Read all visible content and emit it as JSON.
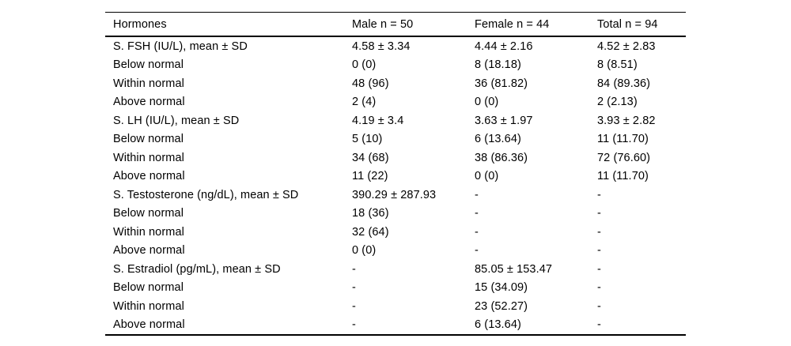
{
  "colors": {
    "background": "#ffffff",
    "text": "#000000",
    "rule": "#000000"
  },
  "table": {
    "columns": [
      "Hormones",
      "Male n = 50",
      "Female n = 44",
      "Total n = 94"
    ],
    "rows": [
      {
        "cells": [
          "S. FSH (IU/L), mean ± SD",
          "4.58 ± 3.34",
          "4.44 ± 2.16",
          "4.52 ± 2.83"
        ]
      },
      {
        "cells": [
          "Below normal",
          "0 (0)",
          "8 (18.18)",
          "8 (8.51)"
        ]
      },
      {
        "cells": [
          "Within normal",
          "48 (96)",
          "36 (81.82)",
          "84 (89.36)"
        ]
      },
      {
        "cells": [
          "Above normal",
          "2 (4)",
          "0 (0)",
          "2 (2.13)"
        ]
      },
      {
        "cells": [
          "S. LH (IU/L), mean ± SD",
          "4.19 ± 3.4",
          "3.63 ± 1.97",
          "3.93 ± 2.82"
        ]
      },
      {
        "cells": [
          "Below normal",
          "5 (10)",
          "6 (13.64)",
          "11 (11.70)"
        ]
      },
      {
        "cells": [
          "Within normal",
          "34 (68)",
          "38 (86.36)",
          "72 (76.60)"
        ]
      },
      {
        "cells": [
          "Above normal",
          "11 (22)",
          "0 (0)",
          "11 (11.70)"
        ]
      },
      {
        "cells": [
          "S. Testosterone (ng/dL), mean ± SD",
          "390.29 ± 287.93",
          "-",
          "-"
        ]
      },
      {
        "cells": [
          "Below normal",
          "18 (36)",
          "-",
          "-"
        ]
      },
      {
        "cells": [
          "Within normal",
          "32 (64)",
          "-",
          "-"
        ]
      },
      {
        "cells": [
          "Above normal",
          "0 (0)",
          "-",
          "-"
        ]
      },
      {
        "cells": [
          "S. Estradiol (pg/mL), mean ± SD",
          "-",
          "85.05 ± 153.47",
          "-"
        ]
      },
      {
        "cells": [
          "Below normal",
          "-",
          "15 (34.09)",
          "-"
        ]
      },
      {
        "cells": [
          "Within normal",
          "-",
          "23 (52.27)",
          "-"
        ]
      },
      {
        "cells": [
          "Above normal",
          "-",
          "6 (13.64)",
          "-"
        ]
      }
    ]
  }
}
